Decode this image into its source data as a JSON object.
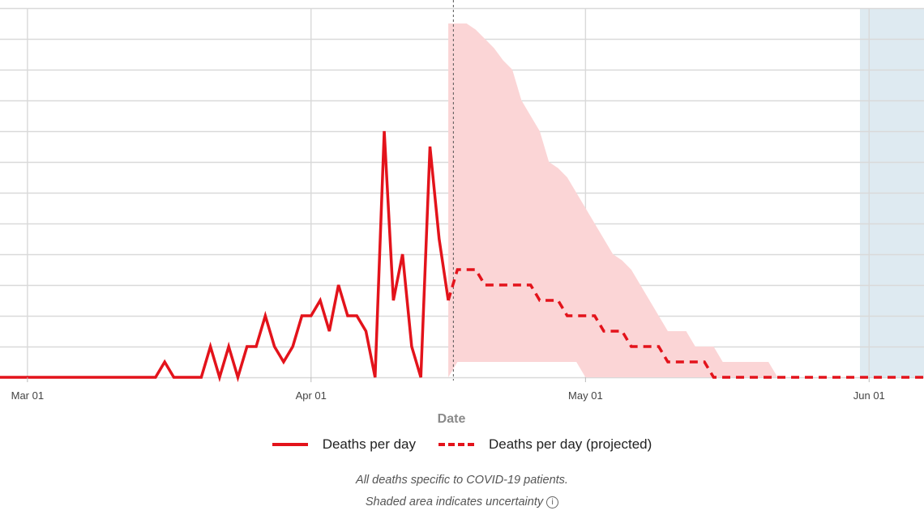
{
  "chart_data": {
    "type": "line",
    "xlabel": "Date",
    "x_ticks": [
      {
        "date": "2020-03-01",
        "label": "Mar 01"
      },
      {
        "date": "2020-04-01",
        "label": "Apr 01"
      },
      {
        "date": "2020-05-01",
        "label": "May 01"
      },
      {
        "date": "2020-06-01",
        "label": "Jun 01"
      }
    ],
    "xlim": [
      "2020-02-27",
      "2020-06-07"
    ],
    "y_gridlines": 12,
    "grid": true,
    "projection_start": "2020-04-17",
    "shaded_region": [
      "2020-05-31",
      "2020-06-07"
    ],
    "series": [
      {
        "name": "Deaths per day",
        "style": "solid",
        "color": "#e3131b",
        "points": [
          [
            "2020-02-27",
            0
          ],
          [
            "2020-03-15",
            0
          ],
          [
            "2020-03-16",
            0.5
          ],
          [
            "2020-03-17",
            0
          ],
          [
            "2020-03-20",
            0
          ],
          [
            "2020-03-21",
            1
          ],
          [
            "2020-03-22",
            0
          ],
          [
            "2020-03-23",
            1
          ],
          [
            "2020-03-24",
            0
          ],
          [
            "2020-03-25",
            1
          ],
          [
            "2020-03-26",
            1
          ],
          [
            "2020-03-27",
            2
          ],
          [
            "2020-03-28",
            1
          ],
          [
            "2020-03-29",
            0.5
          ],
          [
            "2020-03-30",
            1
          ],
          [
            "2020-03-31",
            2
          ],
          [
            "2020-04-01",
            2
          ],
          [
            "2020-04-02",
            2.5
          ],
          [
            "2020-04-03",
            1.5
          ],
          [
            "2020-04-04",
            3
          ],
          [
            "2020-04-05",
            2
          ],
          [
            "2020-04-06",
            2
          ],
          [
            "2020-04-07",
            1.5
          ],
          [
            "2020-04-08",
            0
          ],
          [
            "2020-04-09",
            8
          ],
          [
            "2020-04-10",
            2.5
          ],
          [
            "2020-04-11",
            4
          ],
          [
            "2020-04-12",
            1
          ],
          [
            "2020-04-13",
            0
          ],
          [
            "2020-04-14",
            7.5
          ],
          [
            "2020-04-15",
            4.5
          ],
          [
            "2020-04-16",
            2.5
          ]
        ]
      },
      {
        "name": "Deaths per day (projected)",
        "style": "dashed",
        "color": "#e3131b",
        "points": [
          [
            "2020-04-16",
            2.5
          ],
          [
            "2020-04-17",
            3.5
          ],
          [
            "2020-04-18",
            3.5
          ],
          [
            "2020-04-19",
            3.5
          ],
          [
            "2020-04-20",
            3
          ],
          [
            "2020-04-25",
            3
          ],
          [
            "2020-04-26",
            2.5
          ],
          [
            "2020-04-28",
            2.5
          ],
          [
            "2020-04-29",
            2
          ],
          [
            "2020-05-02",
            2
          ],
          [
            "2020-05-03",
            1.5
          ],
          [
            "2020-05-05",
            1.5
          ],
          [
            "2020-05-06",
            1
          ],
          [
            "2020-05-09",
            1
          ],
          [
            "2020-05-10",
            0.5
          ],
          [
            "2020-05-14",
            0.5
          ],
          [
            "2020-05-15",
            0
          ],
          [
            "2020-06-07",
            0
          ]
        ]
      }
    ],
    "uncertainty_band": [
      [
        "2020-04-16",
        0,
        11.5
      ],
      [
        "2020-04-17",
        0.5,
        11.5
      ],
      [
        "2020-04-18",
        0.5,
        11.5
      ],
      [
        "2020-04-19",
        0.5,
        11.3
      ],
      [
        "2020-04-20",
        0.5,
        11
      ],
      [
        "2020-04-21",
        0.5,
        10.7
      ],
      [
        "2020-04-22",
        0.5,
        10.3
      ],
      [
        "2020-04-23",
        0.5,
        10
      ],
      [
        "2020-04-24",
        0.5,
        9
      ],
      [
        "2020-04-25",
        0.5,
        8.5
      ],
      [
        "2020-04-26",
        0.5,
        8
      ],
      [
        "2020-04-27",
        0.5,
        7
      ],
      [
        "2020-04-28",
        0.5,
        6.8
      ],
      [
        "2020-04-29",
        0.5,
        6.5
      ],
      [
        "2020-04-30",
        0.5,
        6
      ],
      [
        "2020-05-01",
        0,
        5.5
      ],
      [
        "2020-05-02",
        0,
        5
      ],
      [
        "2020-05-03",
        0,
        4.5
      ],
      [
        "2020-05-04",
        0,
        4
      ],
      [
        "2020-05-05",
        0,
        3.8
      ],
      [
        "2020-05-06",
        0,
        3.5
      ],
      [
        "2020-05-07",
        0,
        3
      ],
      [
        "2020-05-08",
        0,
        2.5
      ],
      [
        "2020-05-09",
        0,
        2
      ],
      [
        "2020-05-10",
        0,
        1.5
      ],
      [
        "2020-05-11",
        0,
        1.5
      ],
      [
        "2020-05-12",
        0,
        1.5
      ],
      [
        "2020-05-13",
        0,
        1
      ],
      [
        "2020-05-14",
        0,
        1
      ],
      [
        "2020-05-15",
        0,
        1
      ],
      [
        "2020-05-16",
        0,
        0.5
      ],
      [
        "2020-05-17",
        0,
        0.5
      ],
      [
        "2020-05-18",
        0,
        0.5
      ],
      [
        "2020-05-19",
        0,
        0.5
      ],
      [
        "2020-05-20",
        0,
        0.5
      ],
      [
        "2020-05-21",
        0,
        0.5
      ],
      [
        "2020-05-22",
        0,
        0
      ]
    ],
    "colors": {
      "line": "#e3131b",
      "band": "#fbd5d6",
      "shaded_region": "#deeaf1",
      "grid": "#d9d9d9"
    }
  },
  "legend": {
    "actual": "Deaths per day",
    "projected": "Deaths per day (projected)"
  },
  "notes": {
    "line1": "All deaths specific to COVID-19 patients.",
    "line2": "Shaded area indicates uncertainty",
    "icon": "info-icon"
  }
}
